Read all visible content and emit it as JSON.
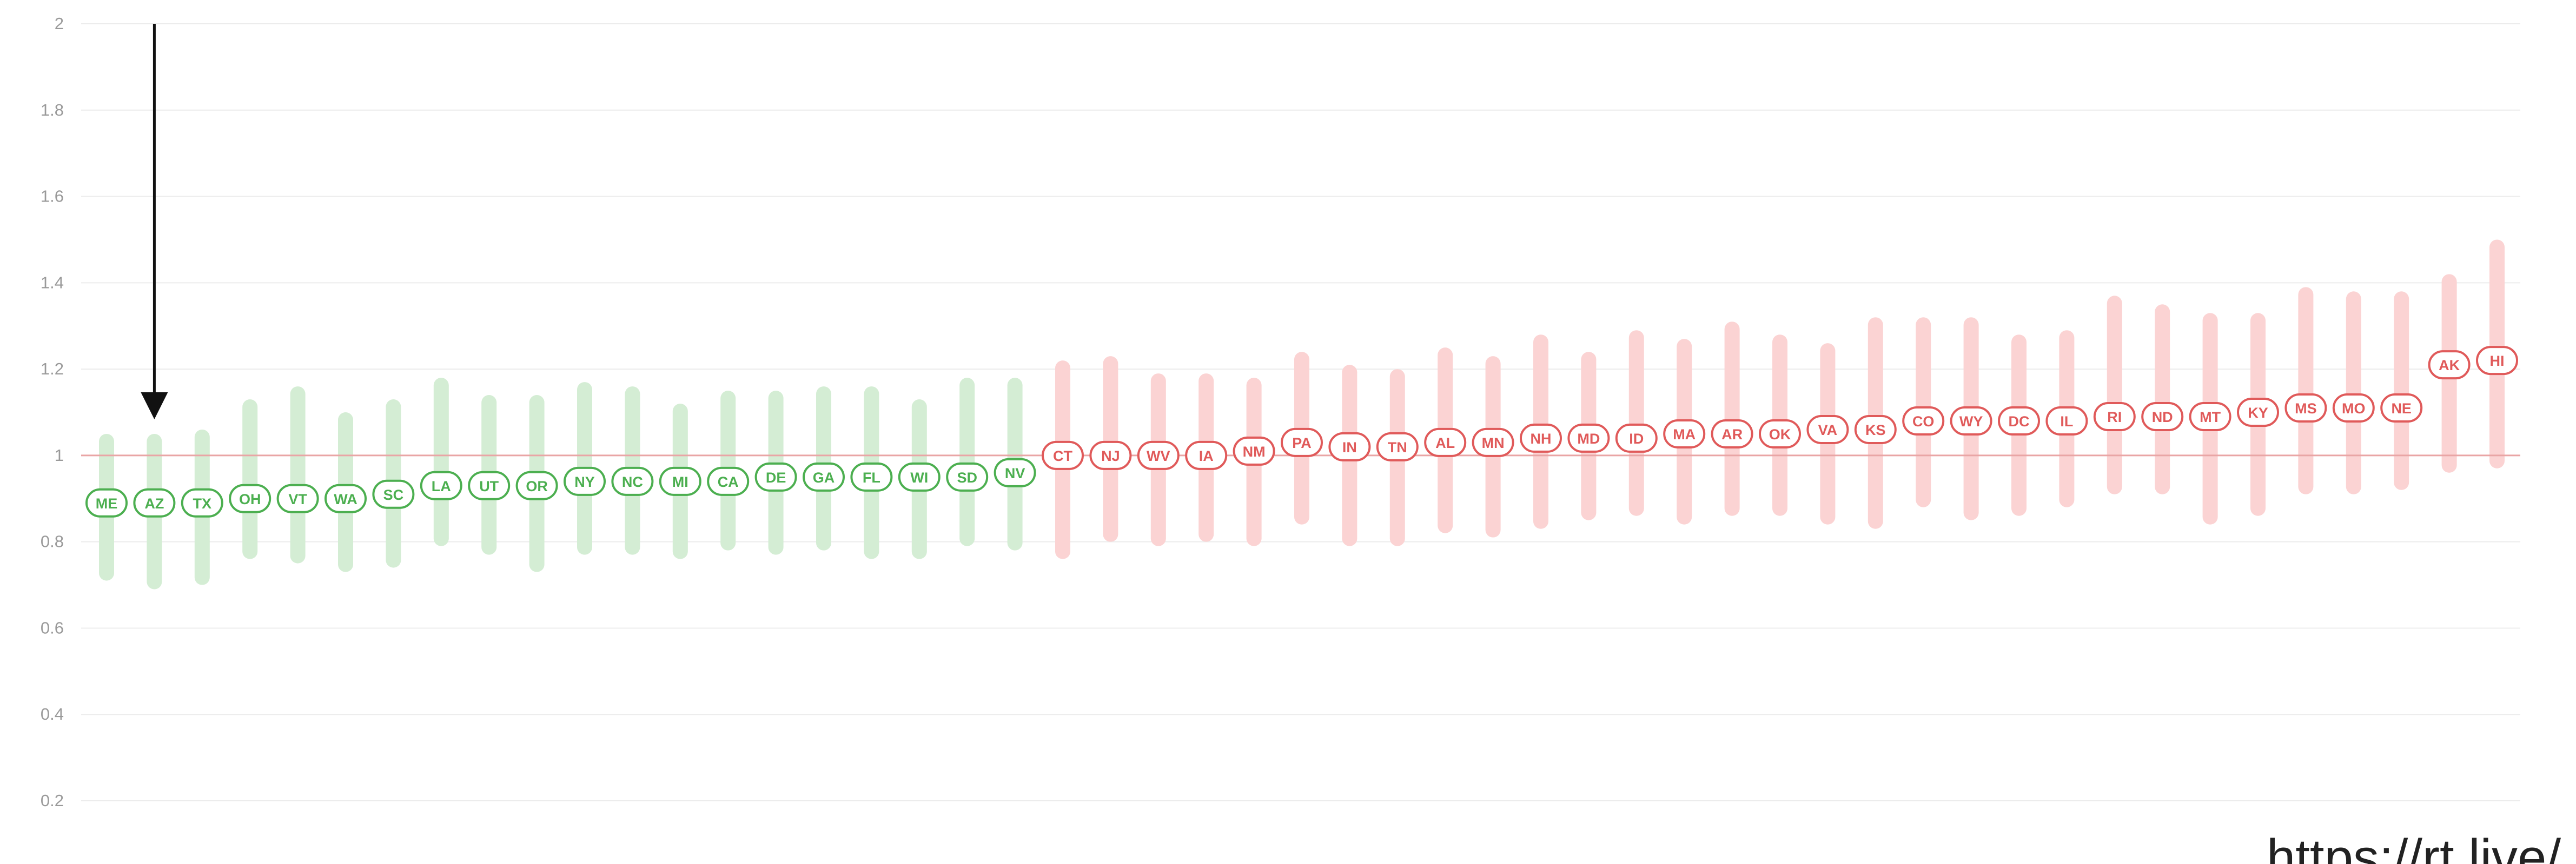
{
  "chart_data": {
    "type": "scatter",
    "title": "",
    "xlabel": "",
    "ylabel": "",
    "ylim": [
      0.2,
      2.0
    ],
    "yticks": [
      0.2,
      0.4,
      0.6,
      0.8,
      1,
      1.2,
      1.4,
      1.6,
      1.8,
      2
    ],
    "reference_line": 1.0,
    "grid": true,
    "colors": {
      "below": "#4caf50",
      "below_band": "#d4edd4",
      "above": "#e05a5a",
      "above_band": "#fbd3d3",
      "reference": "#e9a5a5",
      "arrow": "#111111"
    },
    "points": [
      {
        "state": "ME",
        "value": 0.89,
        "low": 0.71,
        "high": 1.05
      },
      {
        "state": "AZ",
        "value": 0.89,
        "low": 0.69,
        "high": 1.05
      },
      {
        "state": "TX",
        "value": 0.89,
        "low": 0.7,
        "high": 1.06
      },
      {
        "state": "OH",
        "value": 0.9,
        "low": 0.76,
        "high": 1.13
      },
      {
        "state": "VT",
        "value": 0.9,
        "low": 0.75,
        "high": 1.16
      },
      {
        "state": "WA",
        "value": 0.9,
        "low": 0.73,
        "high": 1.1
      },
      {
        "state": "SC",
        "value": 0.91,
        "low": 0.74,
        "high": 1.13
      },
      {
        "state": "LA",
        "value": 0.93,
        "low": 0.79,
        "high": 1.18
      },
      {
        "state": "UT",
        "value": 0.93,
        "low": 0.77,
        "high": 1.14
      },
      {
        "state": "OR",
        "value": 0.93,
        "low": 0.73,
        "high": 1.14
      },
      {
        "state": "NY",
        "value": 0.94,
        "low": 0.77,
        "high": 1.17
      },
      {
        "state": "NC",
        "value": 0.94,
        "low": 0.77,
        "high": 1.16
      },
      {
        "state": "MI",
        "value": 0.94,
        "low": 0.76,
        "high": 1.12
      },
      {
        "state": "CA",
        "value": 0.94,
        "low": 0.78,
        "high": 1.15
      },
      {
        "state": "DE",
        "value": 0.95,
        "low": 0.77,
        "high": 1.15
      },
      {
        "state": "GA",
        "value": 0.95,
        "low": 0.78,
        "high": 1.16
      },
      {
        "state": "FL",
        "value": 0.95,
        "low": 0.76,
        "high": 1.16
      },
      {
        "state": "WI",
        "value": 0.95,
        "low": 0.76,
        "high": 1.13
      },
      {
        "state": "SD",
        "value": 0.95,
        "low": 0.79,
        "high": 1.18
      },
      {
        "state": "NV",
        "value": 0.96,
        "low": 0.78,
        "high": 1.18
      },
      {
        "state": "CT",
        "value": 1.0,
        "low": 0.76,
        "high": 1.22
      },
      {
        "state": "NJ",
        "value": 1.0,
        "low": 0.8,
        "high": 1.23
      },
      {
        "state": "WV",
        "value": 1.0,
        "low": 0.79,
        "high": 1.19
      },
      {
        "state": "IA",
        "value": 1.0,
        "low": 0.8,
        "high": 1.19
      },
      {
        "state": "NM",
        "value": 1.01,
        "low": 0.79,
        "high": 1.18
      },
      {
        "state": "PA",
        "value": 1.03,
        "low": 0.84,
        "high": 1.24
      },
      {
        "state": "IN",
        "value": 1.02,
        "low": 0.79,
        "high": 1.21
      },
      {
        "state": "TN",
        "value": 1.02,
        "low": 0.79,
        "high": 1.2
      },
      {
        "state": "AL",
        "value": 1.03,
        "low": 0.82,
        "high": 1.25
      },
      {
        "state": "MN",
        "value": 1.03,
        "low": 0.81,
        "high": 1.23
      },
      {
        "state": "NH",
        "value": 1.04,
        "low": 0.83,
        "high": 1.28
      },
      {
        "state": "MD",
        "value": 1.04,
        "low": 0.85,
        "high": 1.24
      },
      {
        "state": "ID",
        "value": 1.04,
        "low": 0.86,
        "high": 1.29
      },
      {
        "state": "MA",
        "value": 1.05,
        "low": 0.84,
        "high": 1.27
      },
      {
        "state": "AR",
        "value": 1.05,
        "low": 0.86,
        "high": 1.31
      },
      {
        "state": "OK",
        "value": 1.05,
        "low": 0.86,
        "high": 1.28
      },
      {
        "state": "VA",
        "value": 1.06,
        "low": 0.84,
        "high": 1.26
      },
      {
        "state": "KS",
        "value": 1.06,
        "low": 0.83,
        "high": 1.32
      },
      {
        "state": "CO",
        "value": 1.08,
        "low": 0.88,
        "high": 1.32
      },
      {
        "state": "WY",
        "value": 1.08,
        "low": 0.85,
        "high": 1.32
      },
      {
        "state": "DC",
        "value": 1.08,
        "low": 0.86,
        "high": 1.28
      },
      {
        "state": "IL",
        "value": 1.08,
        "low": 0.88,
        "high": 1.29
      },
      {
        "state": "RI",
        "value": 1.09,
        "low": 0.91,
        "high": 1.37
      },
      {
        "state": "ND",
        "value": 1.09,
        "low": 0.91,
        "high": 1.35
      },
      {
        "state": "MT",
        "value": 1.09,
        "low": 0.84,
        "high": 1.33
      },
      {
        "state": "KY",
        "value": 1.1,
        "low": 0.86,
        "high": 1.33
      },
      {
        "state": "MS",
        "value": 1.11,
        "low": 0.91,
        "high": 1.39
      },
      {
        "state": "MO",
        "value": 1.11,
        "low": 0.91,
        "high": 1.38
      },
      {
        "state": "NE",
        "value": 1.11,
        "low": 0.92,
        "high": 1.38
      },
      {
        "state": "AK",
        "value": 1.21,
        "low": 0.96,
        "high": 1.42
      },
      {
        "state": "HI",
        "value": 1.22,
        "low": 0.97,
        "high": 1.5
      }
    ],
    "annotation_arrow": {
      "state": "AZ",
      "from": 2.0,
      "to": 1.09
    }
  },
  "watermark": "https://rt.live/"
}
